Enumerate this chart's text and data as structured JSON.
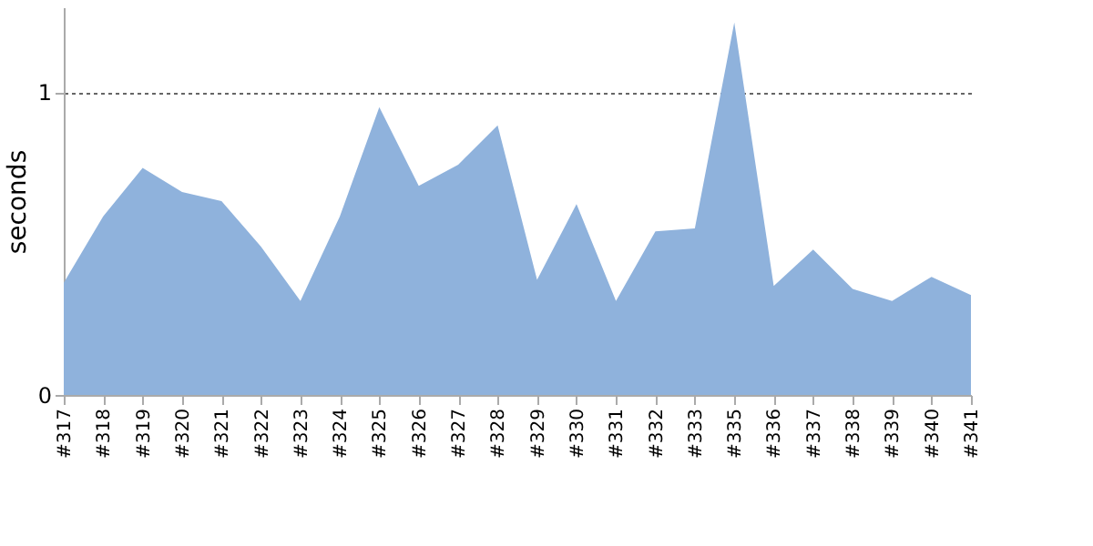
{
  "chart_data": {
    "type": "area",
    "ylabel": "seconds",
    "categories": [
      "#317",
      "#318",
      "#319",
      "#320",
      "#321",
      "#322",
      "#323",
      "#324",
      "#325",
      "#326",
      "#327",
      "#328",
      "#329",
      "#330",
      "#331",
      "#332",
      "#333",
      "#335",
      "#336",
      "#337",
      "#338",
      "#339",
      "#340",
      "#341"
    ],
    "series": [
      {
        "color": "#8fb2dc",
        "values": [
          0.37,
          0.59,
          0.75,
          0.67,
          0.64,
          0.49,
          0.31,
          0.59,
          0.95,
          0.69,
          0.76,
          0.89,
          0.38,
          0.63,
          0.31,
          0.54,
          0.55,
          1.23,
          0.36,
          0.48,
          0.35,
          0.31,
          0.39,
          0.33
        ]
      }
    ],
    "ylim": [
      0,
      1.28
    ],
    "yticks": [
      0,
      1
    ],
    "grid": "y"
  }
}
